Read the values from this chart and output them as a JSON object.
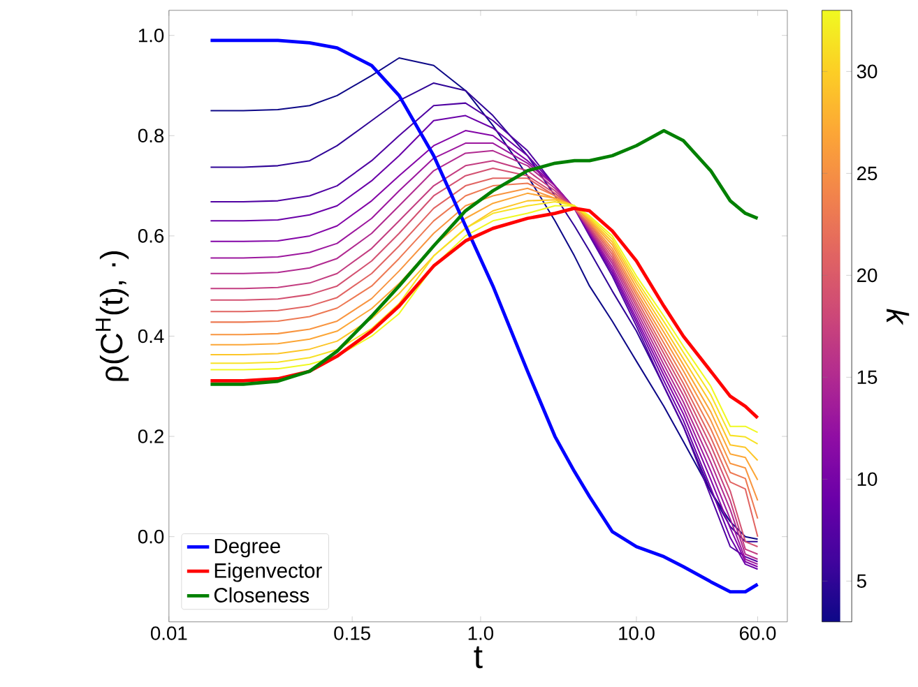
{
  "chart_data": {
    "type": "line",
    "xlabel": "t",
    "ylabel": "ρ(C$^{H}$(t), ·)",
    "clabel": "k",
    "log": "x",
    "legend": "bottom left",
    "grid": false,
    "xlim": [
      0.01,
      93
    ],
    "ylim": [
      -0.17,
      1.05
    ],
    "xticks": [
      0.01,
      0.15,
      {
        "value": 1,
        "label": "1.0"
      },
      {
        "value": 10,
        "label": "10.0"
      },
      {
        "value": 60,
        "label": "60.0"
      }
    ],
    "yticks": [
      {
        "value": 0,
        "label": "0.0"
      },
      {
        "value": 0.2,
        "label": "0.2"
      },
      {
        "value": 0.4,
        "label": "0.4"
      },
      {
        "value": 0.6,
        "label": "0.6"
      },
      {
        "value": 0.8,
        "label": "0.8"
      },
      {
        "value": 1,
        "label": "1.0"
      }
    ],
    "clim": [
      3,
      33
    ],
    "cticks": [
      5,
      10,
      15,
      20,
      25,
      30
    ],
    "x": [
      0.0185,
      0.03,
      0.05,
      0.08,
      0.12,
      0.2,
      0.3,
      0.5,
      0.8,
      1.2,
      2,
      3,
      4,
      5,
      7,
      10,
      15,
      20,
      30,
      40,
      50,
      60
    ],
    "series": [
      {
        "color": "#0d0887",
        "values": [
          0.85,
          0.85,
          0.852,
          0.86,
          0.88,
          0.92,
          0.955,
          0.94,
          0.89,
          0.82,
          0.72,
          0.63,
          0.56,
          0.5,
          0.43,
          0.35,
          0.26,
          0.19,
          0.09,
          0.03,
          0.0,
          -0.005
        ]
      },
      {
        "color": "#300597",
        "values": [
          0.737,
          0.737,
          0.74,
          0.75,
          0.78,
          0.83,
          0.87,
          0.905,
          0.89,
          0.84,
          0.76,
          0.68,
          0.62,
          0.57,
          0.49,
          0.41,
          0.3,
          0.22,
          0.09,
          0.02,
          -0.01,
          -0.01
        ]
      },
      {
        "color": "#5002a2",
        "values": [
          0.668,
          0.668,
          0.67,
          0.68,
          0.7,
          0.75,
          0.8,
          0.86,
          0.865,
          0.83,
          0.77,
          0.7,
          0.655,
          0.6,
          0.52,
          0.42,
          0.3,
          0.22,
          0.08,
          -0.02,
          -0.04,
          -0.05
        ]
      },
      {
        "color": "#6a00a8",
        "values": [
          0.63,
          0.63,
          0.632,
          0.642,
          0.66,
          0.71,
          0.76,
          0.83,
          0.84,
          0.815,
          0.76,
          0.7,
          0.655,
          0.603,
          0.526,
          0.428,
          0.311,
          0.232,
          0.097,
          -0.002,
          -0.055,
          -0.065
        ]
      },
      {
        "color": "#8305a7",
        "values": [
          0.589,
          0.589,
          0.59,
          0.6,
          0.62,
          0.67,
          0.72,
          0.78,
          0.81,
          0.8,
          0.75,
          0.7,
          0.655,
          0.606,
          0.532,
          0.435,
          0.322,
          0.245,
          0.114,
          0.017,
          -0.05,
          -0.06
        ]
      },
      {
        "color": "#9c179e",
        "values": [
          0.556,
          0.556,
          0.558,
          0.567,
          0.585,
          0.635,
          0.69,
          0.755,
          0.785,
          0.785,
          0.745,
          0.7,
          0.655,
          0.609,
          0.538,
          0.443,
          0.332,
          0.257,
          0.131,
          0.035,
          -0.045,
          -0.055
        ]
      },
      {
        "color": "#b12a90",
        "values": [
          0.525,
          0.525,
          0.527,
          0.536,
          0.555,
          0.605,
          0.66,
          0.73,
          0.765,
          0.77,
          0.74,
          0.695,
          0.655,
          0.612,
          0.545,
          0.451,
          0.343,
          0.269,
          0.148,
          0.054,
          -0.035,
          -0.045
        ]
      },
      {
        "color": "#c33d80",
        "values": [
          0.495,
          0.495,
          0.497,
          0.506,
          0.525,
          0.575,
          0.63,
          0.7,
          0.74,
          0.75,
          0.73,
          0.69,
          0.655,
          0.615,
          0.551,
          0.459,
          0.354,
          0.282,
          0.165,
          0.072,
          -0.025,
          -0.035
        ]
      },
      {
        "color": "#d35171",
        "values": [
          0.472,
          0.472,
          0.474,
          0.483,
          0.5,
          0.55,
          0.605,
          0.68,
          0.72,
          0.735,
          0.72,
          0.685,
          0.655,
          0.618,
          0.557,
          0.466,
          0.365,
          0.294,
          0.182,
          0.091,
          -0.01,
          -0.02
        ]
      },
      {
        "color": "#e16462",
        "values": [
          0.449,
          0.449,
          0.451,
          0.46,
          0.477,
          0.525,
          0.58,
          0.655,
          0.7,
          0.715,
          0.715,
          0.68,
          0.655,
          0.622,
          0.563,
          0.474,
          0.375,
          0.306,
          0.198,
          0.109,
          0.095,
          0.0
        ]
      },
      {
        "color": "#ed7953",
        "values": [
          0.428,
          0.428,
          0.43,
          0.439,
          0.456,
          0.5,
          0.555,
          0.63,
          0.68,
          0.7,
          0.705,
          0.68,
          0.655,
          0.625,
          0.569,
          0.482,
          0.386,
          0.318,
          0.215,
          0.128,
          0.116,
          0.036
        ]
      },
      {
        "color": "#f89540",
        "values": [
          0.403,
          0.403,
          0.405,
          0.414,
          0.43,
          0.475,
          0.53,
          0.605,
          0.66,
          0.68,
          0.695,
          0.675,
          0.66,
          0.628,
          0.575,
          0.489,
          0.397,
          0.331,
          0.232,
          0.146,
          0.137,
          0.072
        ]
      },
      {
        "color": "#fca636",
        "values": [
          0.383,
          0.383,
          0.385,
          0.394,
          0.41,
          0.455,
          0.505,
          0.58,
          0.635,
          0.665,
          0.685,
          0.675,
          0.66,
          0.631,
          0.582,
          0.497,
          0.408,
          0.343,
          0.249,
          0.165,
          0.158,
          0.113
        ]
      },
      {
        "color": "#fdc527",
        "values": [
          0.363,
          0.363,
          0.365,
          0.374,
          0.39,
          0.435,
          0.485,
          0.56,
          0.615,
          0.65,
          0.67,
          0.672,
          0.66,
          0.634,
          0.588,
          0.505,
          0.418,
          0.355,
          0.266,
          0.183,
          0.178,
          0.152
        ]
      },
      {
        "color": "#f7e225",
        "values": [
          0.346,
          0.346,
          0.348,
          0.357,
          0.373,
          0.415,
          0.465,
          0.56,
          0.615,
          0.645,
          0.66,
          0.668,
          0.66,
          0.637,
          0.594,
          0.512,
          0.429,
          0.368,
          0.283,
          0.202,
          0.199,
          0.185
        ]
      },
      {
        "color": "#f0f921",
        "values": [
          0.333,
          0.333,
          0.335,
          0.344,
          0.36,
          0.4,
          0.445,
          0.54,
          0.6,
          0.63,
          0.645,
          0.66,
          0.66,
          0.64,
          0.6,
          0.52,
          0.44,
          0.38,
          0.3,
          0.22,
          0.22,
          0.208
        ]
      },
      {
        "name": "Degree",
        "color": "#0000ff",
        "values": [
          0.99,
          0.99,
          0.99,
          0.985,
          0.975,
          0.94,
          0.88,
          0.76,
          0.62,
          0.5,
          0.33,
          0.2,
          0.13,
          0.08,
          0.01,
          -0.02,
          -0.04,
          -0.06,
          -0.09,
          -0.11,
          -0.11,
          -0.095
        ]
      },
      {
        "name": "Eigenvector",
        "color": "#ff0000",
        "values": [
          0.311,
          0.311,
          0.315,
          0.33,
          0.36,
          0.41,
          0.46,
          0.54,
          0.59,
          0.615,
          0.635,
          0.645,
          0.655,
          0.65,
          0.61,
          0.55,
          0.46,
          0.4,
          0.33,
          0.28,
          0.26,
          0.237
        ]
      },
      {
        "name": "Closeness",
        "color": "#008000",
        "values": [
          0.304,
          0.304,
          0.31,
          0.33,
          0.37,
          0.44,
          0.5,
          0.58,
          0.65,
          0.69,
          0.73,
          0.745,
          0.75,
          0.75,
          0.76,
          0.78,
          0.81,
          0.79,
          0.73,
          0.67,
          0.645,
          0.635
        ]
      }
    ]
  }
}
